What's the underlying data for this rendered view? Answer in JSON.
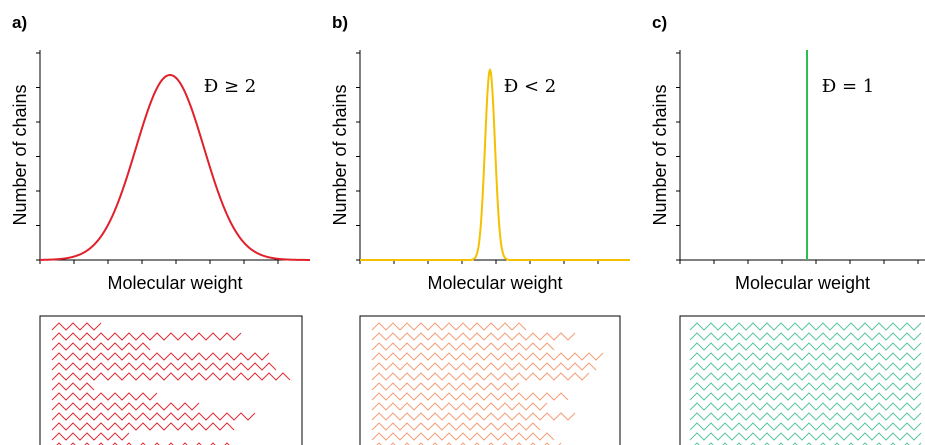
{
  "panels": [
    {
      "label": "a)",
      "y_label": "Number of chains",
      "x_label": "Molecular weight",
      "annotation": "Đ ≥ 2"
    },
    {
      "label": "b)",
      "y_label": "Number of chains",
      "x_label": "Molecular weight",
      "annotation": "Đ < 2"
    },
    {
      "label": "c)",
      "y_label": "Number of chains",
      "x_label": "Molecular weight",
      "annotation": "Đ = 1"
    }
  ]
}
